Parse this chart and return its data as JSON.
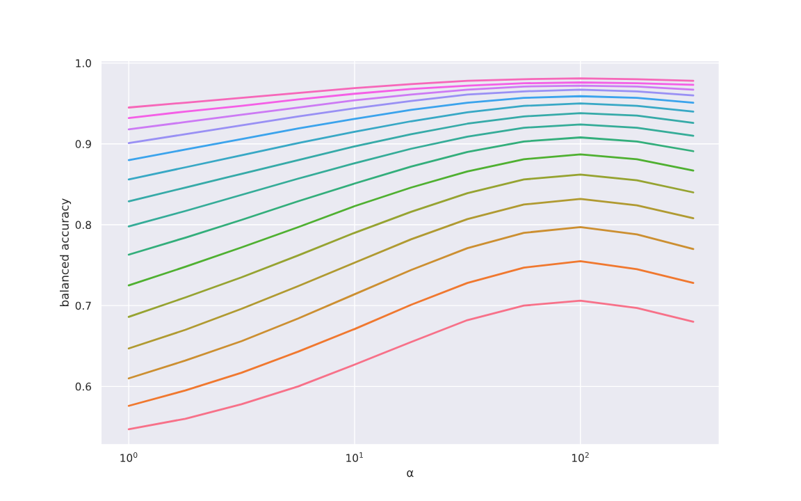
{
  "chart_data": {
    "type": "line",
    "xlabel": "α",
    "ylabel": "balanced accuracy",
    "log": "x",
    "grid": true,
    "marker": "none",
    "line_style": "solid",
    "xlim": [
      0.753,
      412
    ],
    "xticks": [
      {
        "value": 1,
        "label": "10$^{0}$"
      },
      {
        "value": 10,
        "label": "10$^{1}$"
      },
      {
        "value": 100,
        "label": "10$^{2}$"
      }
    ],
    "ylim": [
      0.528,
      1.003
    ],
    "yticks": [
      0.6,
      0.7,
      0.8,
      0.9,
      {
        "value": 1,
        "label": "1.0"
      }
    ],
    "x": [
      1,
      1.78,
      3.16,
      5.62,
      10,
      17.8,
      31.6,
      56.2,
      100,
      178,
      316
    ],
    "series": [
      {
        "color": "#f77189",
        "values": [
          0.547,
          0.56,
          0.578,
          0.6,
          0.627,
          0.655,
          0.682,
          0.7,
          0.706,
          0.697,
          0.68
        ]
      },
      {
        "color": "#f0782f",
        "values": [
          0.576,
          0.595,
          0.617,
          0.643,
          0.671,
          0.701,
          0.728,
          0.747,
          0.755,
          0.745,
          0.728
        ]
      },
      {
        "color": "#cc8f31",
        "values": [
          0.61,
          0.632,
          0.656,
          0.684,
          0.714,
          0.744,
          0.771,
          0.79,
          0.797,
          0.788,
          0.77
        ]
      },
      {
        "color": "#b09a31",
        "values": [
          0.647,
          0.67,
          0.696,
          0.724,
          0.753,
          0.782,
          0.807,
          0.825,
          0.832,
          0.824,
          0.808
        ]
      },
      {
        "color": "#96a331",
        "values": [
          0.686,
          0.71,
          0.735,
          0.762,
          0.79,
          0.816,
          0.839,
          0.856,
          0.862,
          0.855,
          0.84
        ]
      },
      {
        "color": "#4fb031",
        "values": [
          0.725,
          0.748,
          0.772,
          0.797,
          0.823,
          0.846,
          0.866,
          0.881,
          0.887,
          0.881,
          0.867
        ]
      },
      {
        "color": "#33ae7b",
        "values": [
          0.763,
          0.784,
          0.806,
          0.829,
          0.851,
          0.872,
          0.89,
          0.903,
          0.908,
          0.903,
          0.891
        ]
      },
      {
        "color": "#35ac98",
        "values": [
          0.798,
          0.817,
          0.837,
          0.857,
          0.876,
          0.894,
          0.909,
          0.92,
          0.924,
          0.92,
          0.91
        ]
      },
      {
        "color": "#36aaa8",
        "values": [
          0.829,
          0.846,
          0.863,
          0.88,
          0.897,
          0.912,
          0.925,
          0.934,
          0.938,
          0.935,
          0.926
        ]
      },
      {
        "color": "#38a8c5",
        "values": [
          0.856,
          0.871,
          0.886,
          0.901,
          0.915,
          0.928,
          0.939,
          0.947,
          0.95,
          0.947,
          0.94
        ]
      },
      {
        "color": "#3ba3ec",
        "values": [
          0.88,
          0.893,
          0.906,
          0.919,
          0.931,
          0.942,
          0.951,
          0.957,
          0.959,
          0.957,
          0.951
        ]
      },
      {
        "color": "#9990f4",
        "values": [
          0.901,
          0.912,
          0.923,
          0.934,
          0.944,
          0.953,
          0.961,
          0.965,
          0.967,
          0.965,
          0.96
        ]
      },
      {
        "color": "#cc7af4",
        "values": [
          0.918,
          0.927,
          0.936,
          0.945,
          0.954,
          0.961,
          0.967,
          0.971,
          0.972,
          0.971,
          0.967
        ]
      },
      {
        "color": "#f45fe6",
        "values": [
          0.932,
          0.94,
          0.947,
          0.955,
          0.962,
          0.968,
          0.972,
          0.975,
          0.976,
          0.975,
          0.973
        ]
      },
      {
        "color": "#f667b9",
        "values": [
          0.945,
          0.951,
          0.957,
          0.963,
          0.969,
          0.974,
          0.978,
          0.98,
          0.981,
          0.98,
          0.978
        ]
      }
    ]
  }
}
